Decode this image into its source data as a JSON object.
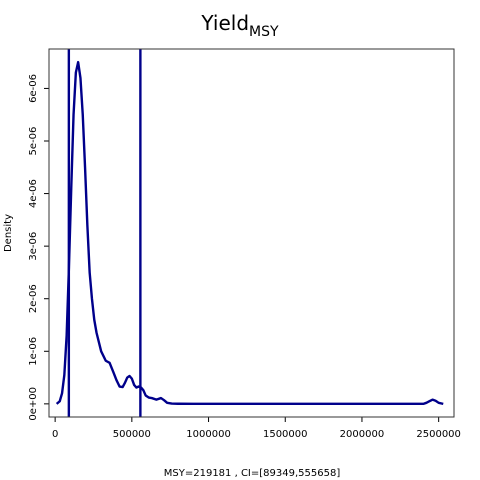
{
  "chart_data": {
    "type": "line",
    "title": "Yield",
    "title_subscript": "MSY",
    "xlabel": "MSY=219181 , CI=[89349,555658]",
    "ylabel": "Density",
    "xlim": [
      -40000,
      2600000
    ],
    "ylim": [
      -2.5e-07,
      6.75e-06
    ],
    "x_ticks": [
      0,
      500000,
      1000000,
      1500000,
      2000000,
      2500000
    ],
    "x_tick_labels": [
      "0",
      "500000",
      "1000000",
      "1500000",
      "2000000",
      "2500000"
    ],
    "y_ticks": [
      0,
      1e-06,
      2e-06,
      3e-06,
      4e-06,
      5e-06,
      6e-06
    ],
    "y_tick_labels": [
      "0e+00",
      "1e-06",
      "2e-06",
      "3e-06",
      "4e-06",
      "5e-06",
      "6e-06"
    ],
    "series": [
      {
        "color": "#00008b",
        "x": [
          10000,
          30000,
          45000,
          60000,
          75000,
          90000,
          105000,
          120000,
          135000,
          150000,
          165000,
          180000,
          195000,
          210000,
          225000,
          240000,
          255000,
          270000,
          300000,
          330000,
          355000,
          380000,
          400000,
          420000,
          440000,
          455000,
          470000,
          485000,
          500000,
          515000,
          530000,
          545000,
          560000,
          575000,
          590000,
          610000,
          630000,
          660000,
          690000,
          710000,
          730000,
          760000,
          800000,
          900000,
          1000000,
          1200000,
          1500000,
          1800000,
          2100000,
          2400000,
          2420000,
          2440000,
          2460000,
          2480000,
          2500000,
          2530000
        ],
        "y": [
          0.0,
          5e-08,
          2e-07,
          5.5e-07,
          1.3e-06,
          2.6e-06,
          4.1e-06,
          5.5e-06,
          6.3e-06,
          6.5e-06,
          6.2e-06,
          5.5e-06,
          4.5e-06,
          3.4e-06,
          2.5e-06,
          2e-06,
          1.6e-06,
          1.35e-06,
          1e-06,
          8.2e-07,
          7.8e-07,
          6e-07,
          4.5e-07,
          3.3e-07,
          3.2e-07,
          4e-07,
          5e-07,
          5.3e-07,
          4.8e-07,
          3.6e-07,
          3.1e-07,
          3.3e-07,
          3.1e-07,
          2.6e-07,
          1.6e-07,
          1.2e-07,
          1.1e-07,
          8e-08,
          1.1e-07,
          7e-08,
          2e-08,
          5e-09,
          2e-09,
          0.0,
          0.0,
          0.0,
          0.0,
          0.0,
          0.0,
          0.0,
          2e-08,
          5e-08,
          8e-08,
          6e-08,
          2e-08,
          0.0
        ]
      }
    ],
    "vlines": [
      {
        "x": 89349,
        "color": "#00008b"
      },
      {
        "x": 555658,
        "color": "#00008b"
      }
    ],
    "grid": false,
    "legend": "none"
  }
}
